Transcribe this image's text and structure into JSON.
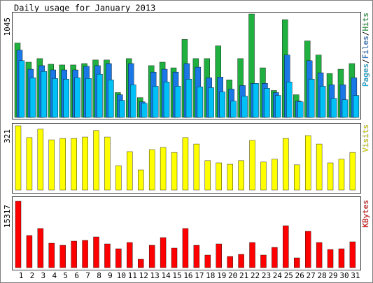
{
  "title": "Daily usage for January 2013",
  "categories": [
    "1",
    "2",
    "3",
    "4",
    "5",
    "6",
    "7",
    "8",
    "9",
    "10",
    "11",
    "12",
    "13",
    "14",
    "15",
    "16",
    "17",
    "18",
    "19",
    "20",
    "21",
    "22",
    "23",
    "24",
    "25",
    "26",
    "27",
    "28",
    "29",
    "30",
    "31"
  ],
  "weekend": [
    false,
    false,
    false,
    false,
    true,
    true,
    false,
    false,
    false,
    false,
    false,
    true,
    true,
    false,
    false,
    false,
    false,
    false,
    true,
    true,
    false,
    false,
    false,
    false,
    false,
    true,
    true,
    false,
    false,
    false,
    false
  ],
  "weekend_color": "#00a000",
  "chart_data": [
    {
      "type": "bar",
      "layout": "overlap",
      "ylim": [
        0,
        1045
      ],
      "yticks": [
        1045
      ],
      "legend_separator": "/",
      "series": [
        {
          "name": "Hits",
          "color": "#20b040",
          "values": [
            752,
            558,
            594,
            537,
            530,
            530,
            544,
            580,
            580,
            251,
            594,
            200,
            523,
            558,
            501,
            788,
            594,
            594,
            723,
            379,
            594,
            1045,
            501,
            272,
            988,
            229,
            773,
            630,
            444,
            487,
            544
          ]
        },
        {
          "name": "Files",
          "color": "#1a78e6",
          "values": [
            680,
            487,
            523,
            480,
            480,
            480,
            516,
            523,
            544,
            229,
            544,
            158,
            458,
            487,
            458,
            544,
            508,
            401,
            408,
            286,
            322,
            344,
            344,
            251,
            630,
            165,
            573,
            451,
            329,
            329,
            401
          ]
        },
        {
          "name": "Pages",
          "color": "#00c0f8",
          "values": [
            573,
            401,
            465,
            394,
            387,
            401,
            394,
            437,
            379,
            172,
            329,
            143,
            315,
            358,
            315,
            387,
            308,
            301,
            258,
            165,
            215,
            344,
            294,
            222,
            358,
            158,
            387,
            315,
            193,
            179,
            222
          ]
        }
      ]
    },
    {
      "type": "bar",
      "ylim": [
        0,
        321
      ],
      "yticks": [
        321
      ],
      "series": [
        {
          "name": "Visits",
          "color": "#ffff00",
          "values": [
            321,
            262,
            304,
            251,
            258,
            258,
            265,
            297,
            265,
            122,
            192,
            101,
            202,
            213,
            188,
            262,
            230,
            147,
            136,
            129,
            147,
            248,
            140,
            154,
            258,
            126,
            272,
            230,
            136,
            154,
            188
          ]
        }
      ]
    },
    {
      "type": "bar",
      "ylim": [
        0,
        15317
      ],
      "yticks": [
        15317
      ],
      "series": [
        {
          "name": "KBytes",
          "color": "#ff0000",
          "values": [
            15317,
            7415,
            9027,
            5642,
            5158,
            6126,
            6287,
            7093,
            5481,
            4352,
            5803,
            1934,
            5158,
            6932,
            4514,
            9027,
            5158,
            2902,
            5481,
            2579,
            3063,
            5803,
            2902,
            4675,
            9672,
            2257,
            8382,
            5803,
            4191,
            4352,
            5964
          ]
        }
      ]
    }
  ]
}
